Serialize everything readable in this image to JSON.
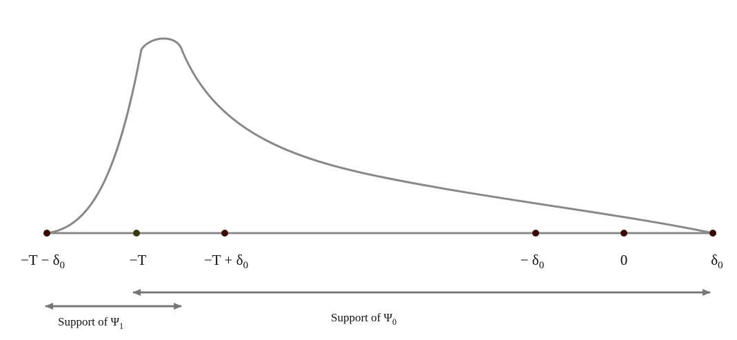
{
  "points": [
    {
      "text": "−T − δ",
      "sub": "0"
    },
    {
      "text": "−T",
      "sub": null
    },
    {
      "text": "−T + δ",
      "sub": "0"
    },
    {
      "text": "− δ",
      "sub": "0"
    },
    {
      "text": "0",
      "sub": null
    },
    {
      "text": "δ",
      "sub": "0"
    }
  ],
  "supports": [
    {
      "text": "Support of Ψ",
      "sub": "1"
    },
    {
      "text": "Support of Ψ",
      "sub": "0"
    }
  ]
}
